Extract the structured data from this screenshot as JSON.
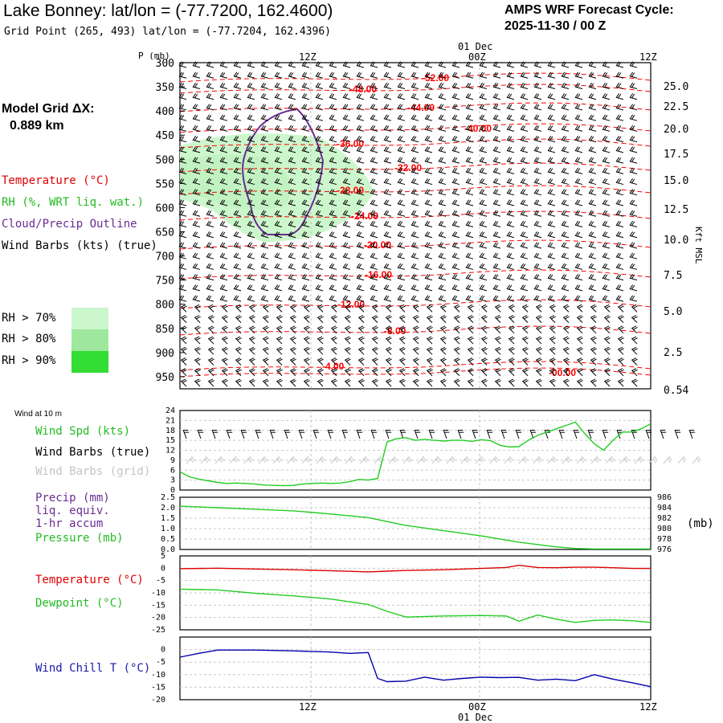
{
  "header": {
    "title": "Lake Bonney:  lat/lon = (-77.7200, 162.4600)",
    "grid_point": "Grid Point (265, 493) lat/lon = (-77.7204, 162.4396)",
    "cycle_label": "AMPS WRF Forecast Cycle:",
    "cycle_value": "2025-11-30 / 00  Z"
  },
  "left_panel": {
    "model_grid_label": "Model Grid ΔX:",
    "model_grid_value": "0.889 km",
    "legend_temperature": "Temperature (°C)",
    "legend_rh": "RH (%, WRT liq. wat.)",
    "legend_cloud": "Cloud/Precip Outline",
    "legend_wind": "Wind Barbs (kts) (true)",
    "rh_levels": [
      "RH > 70%",
      "RH > 80%",
      "RH > 90%"
    ],
    "rh_colors": [
      "#ccf7cc",
      "#9ee89e",
      "#33dd33"
    ]
  },
  "colors": {
    "temperature": "#ff0000",
    "rh_fill": "#ccf7cc",
    "cloud_outline": "#6a2c91",
    "wind_speed": "#22cc22",
    "pressure": "#22cc22",
    "dewpoint": "#22cc22",
    "sfc_temperature": "#dd0000",
    "wind_chill": "#0000aa",
    "grid_barbs": "#c8c8c8",
    "precip_label": "#6a2c91"
  },
  "time_axis": {
    "top_date": "01 Dec",
    "bottom_date": "01 Dec",
    "ticks": [
      "12Z",
      "00Z",
      "12Z"
    ]
  },
  "chart_data": [
    {
      "type": "contour",
      "name": "time-height cross section",
      "ylabel": "P (mb)",
      "right_label": "Kft MSL",
      "pressure_ticks": [
        "300",
        "350",
        "400",
        "450",
        "500",
        "550",
        "600",
        "650",
        "700",
        "750",
        "800",
        "850",
        "900",
        "950"
      ],
      "height_ticks": [
        "25.0",
        "22.5",
        "20.0",
        "17.5",
        "15.0",
        "12.5",
        "10.0",
        "7.5",
        "5.0",
        "2.5",
        "0.54"
      ],
      "temperature_contour_labels": [
        "-52.00",
        "-48.00",
        "-44.00",
        "-40.00",
        "-36.00",
        "-32.00",
        "-28.00",
        "-24.00",
        "-20.00",
        "-16.00",
        "-12.00",
        "-8.00",
        "-4.00",
        "-00.00"
      ]
    },
    {
      "type": "line",
      "name": "wind panel",
      "header": "Wind at 10 m",
      "labels": [
        "Wind Spd (kts)",
        "Wind Barbs (true)",
        "Wind Barbs (grid)"
      ],
      "y_ticks": [
        "24",
        "21",
        "18",
        "15",
        "12",
        "9",
        "6",
        "3",
        "0"
      ],
      "ylim": [
        0,
        24
      ],
      "x_hours": [
        0,
        3,
        6,
        9,
        12,
        15,
        18,
        21,
        24,
        27,
        30,
        33,
        36,
        39,
        42,
        45,
        48,
        51,
        54,
        57,
        60,
        63,
        66,
        69,
        72,
        75,
        78,
        81,
        84,
        87,
        90,
        93,
        96,
        99,
        102,
        105,
        108,
        111,
        114,
        117,
        120,
        123,
        126,
        129,
        132,
        135,
        138,
        141,
        144,
        147,
        150
      ],
      "wind_speed": [
        5.5,
        4,
        3.3,
        2.8,
        2.3,
        2.0,
        2.1,
        2.0,
        1.8,
        1.5,
        1.4,
        1.3,
        1.4,
        1.8,
        2.0,
        2.1,
        2.0,
        2.1,
        2.5,
        3.2,
        3.0,
        3.5,
        14.5,
        15.5,
        15.8,
        15.0,
        15.3,
        15.0,
        14.8,
        15.0,
        15.0,
        14.7,
        15.2,
        14.9,
        13.5,
        13.0,
        13.1,
        15.0,
        16.5,
        17.5,
        18.5,
        19.5,
        20.5,
        17.0,
        14.0,
        12.0,
        15.0,
        17.5,
        17.5,
        18.5,
        20.0
      ]
    },
    {
      "type": "line",
      "name": "pressure panel",
      "labels": [
        "Precip (mm)",
        "liq. equiv.",
        "1-hr accum",
        "Pressure (mb)"
      ],
      "left_ticks": [
        "2.5",
        "2.0",
        "1.5",
        "1.0",
        "0.5",
        "0.0"
      ],
      "right_ticks": [
        "986",
        "984",
        "982",
        "980",
        "978",
        "976"
      ],
      "right_unit": "(mb)",
      "ylim": [
        976,
        986
      ],
      "x_hours": [
        0,
        12,
        24,
        36,
        48,
        60,
        72,
        84,
        96,
        108,
        120,
        126,
        132,
        144,
        150
      ],
      "pressure": [
        984.3,
        984.0,
        983.7,
        983.4,
        982.8,
        982.1,
        980.6,
        979.6,
        978.6,
        977.4,
        976.5,
        976.2,
        976.1,
        976.1,
        976.1
      ]
    },
    {
      "type": "line",
      "name": "temperature panel",
      "labels": [
        "Temperature (°C)",
        "Dewpoint (°C)"
      ],
      "y_ticks": [
        "5",
        "0",
        "-5",
        "-10",
        "-15",
        "-20",
        "-25"
      ],
      "ylim": [
        -25,
        5
      ],
      "x_hours": [
        0,
        12,
        24,
        36,
        48,
        60,
        66,
        72,
        84,
        96,
        104,
        108,
        114,
        120,
        126,
        132,
        138,
        144,
        150
      ],
      "temperature": [
        -0.2,
        0,
        -0.3,
        -0.6,
        -1.0,
        -1.5,
        -1.2,
        -0.9,
        -0.6,
        -0.1,
        0.3,
        1.2,
        0.3,
        0.2,
        0.4,
        0.4,
        0.2,
        -0.1,
        -0.1
      ],
      "dewpoint": [
        -8.5,
        -8.8,
        -10.2,
        -11.2,
        -12.5,
        -14.7,
        -17.5,
        -19.8,
        -19.4,
        -19.2,
        -19.4,
        -21.5,
        -19.0,
        -20.7,
        -22.0,
        -21.2,
        -21.0,
        -21.3,
        -22.0
      ]
    },
    {
      "type": "line",
      "name": "wind chill panel",
      "labels": [
        "Wind Chill T (°C)"
      ],
      "y_ticks": [
        "0",
        "-5",
        "-10",
        "-15",
        "-20"
      ],
      "ylim": [
        -20,
        5
      ],
      "x_hours": [
        0,
        6,
        12,
        24,
        36,
        48,
        54,
        60,
        63,
        66,
        72,
        78,
        84,
        90,
        96,
        102,
        108,
        114,
        120,
        126,
        132,
        138,
        144,
        150
      ],
      "wind_chill": [
        -3,
        -1.5,
        -0.2,
        -0.2,
        -0.5,
        -1.0,
        -1.5,
        -1.2,
        -11.5,
        -12.8,
        -12.6,
        -11.0,
        -12.2,
        -11.5,
        -11.0,
        -11.2,
        -11.1,
        -12.2,
        -11.8,
        -12.4,
        -10.0,
        -11.8,
        -13.2,
        -14.8
      ]
    }
  ]
}
